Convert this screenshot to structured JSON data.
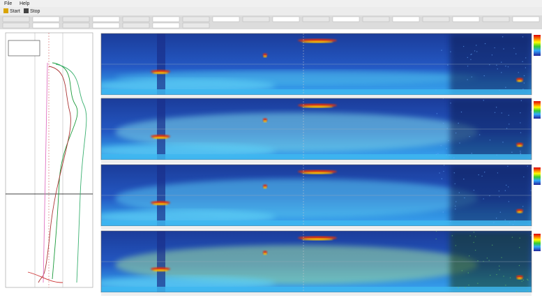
{
  "menu": {
    "items": [
      "File",
      "Help"
    ]
  },
  "toolbar": {
    "buttons": [
      "Start",
      "Stop"
    ]
  }
}
